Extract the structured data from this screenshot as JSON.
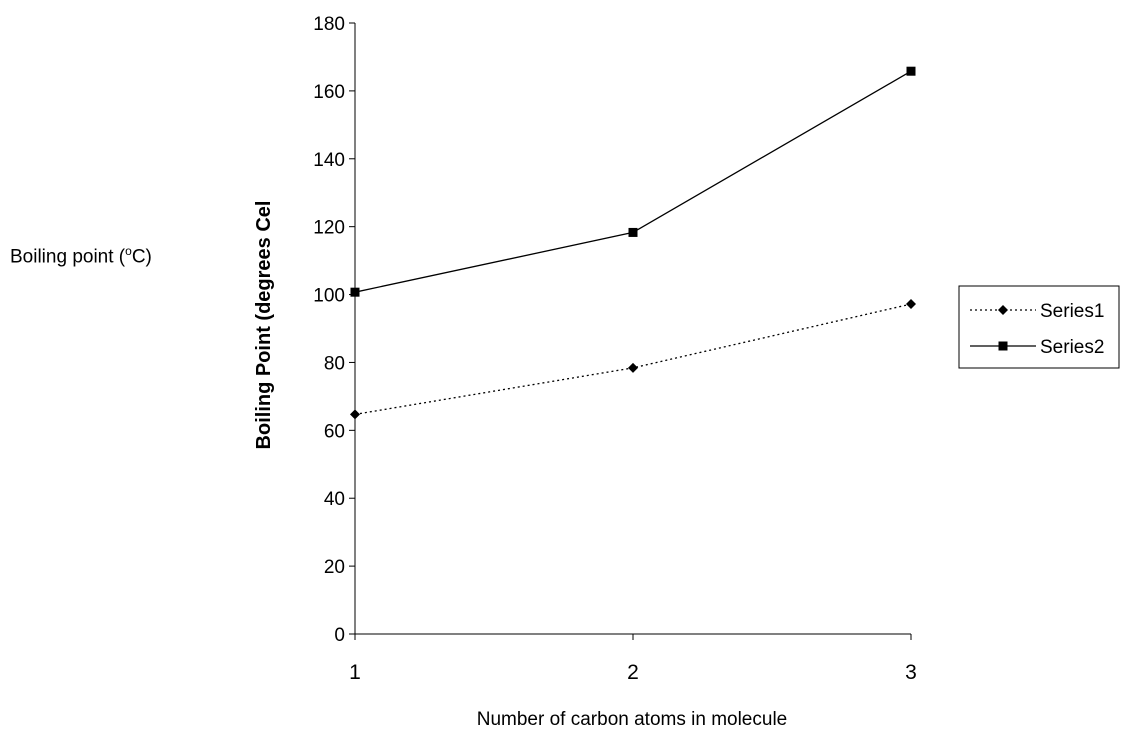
{
  "outer_label": {
    "prefix": "Boiling point (",
    "superscript": "o",
    "suffix": "C)"
  },
  "chart_data": {
    "type": "line",
    "title": "",
    "xlabel": "Number of carbon atoms in molecule",
    "ylabel": "Boiling Point (degrees Cel",
    "categories": [
      "1",
      "2",
      "3"
    ],
    "ylim": [
      0,
      180
    ],
    "yticks": [
      0,
      20,
      40,
      60,
      80,
      100,
      120,
      140,
      160,
      180
    ],
    "grid": false,
    "legend_position": "right",
    "series": [
      {
        "name": "Series1",
        "values": [
          64.7,
          78.4,
          97.2
        ],
        "line_style": "dotted",
        "marker": "diamond",
        "color": "#000000"
      },
      {
        "name": "Series2",
        "values": [
          100.7,
          118.3,
          165.8
        ],
        "line_style": "solid",
        "marker": "square",
        "color": "#000000"
      }
    ]
  }
}
